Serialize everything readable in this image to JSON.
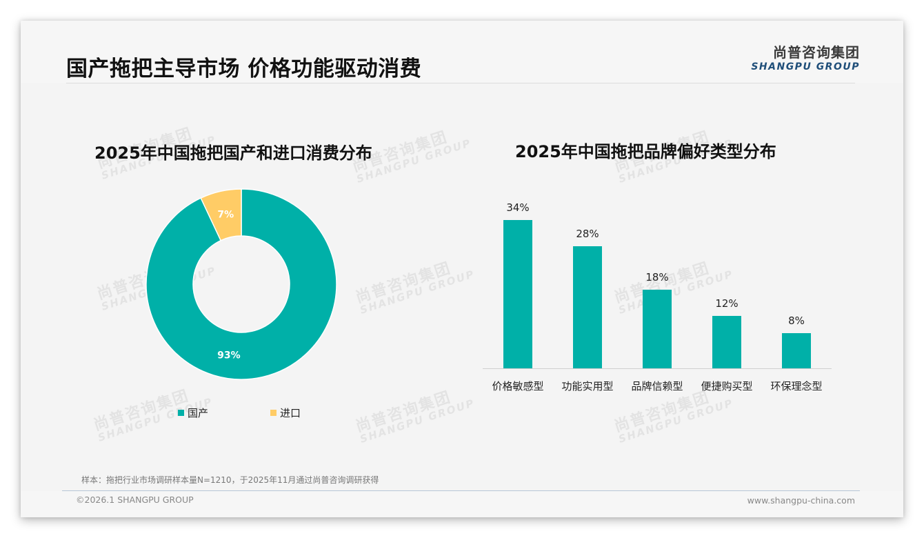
{
  "header": {
    "title": "国产拖把主导市场 价格功能驱动消费",
    "logo_cn": "尚普咨询集团",
    "logo_en": "SHANGPU GROUP"
  },
  "watermark": {
    "cn": "尚普咨询集团",
    "en": "SHANGPU GROUP"
  },
  "colors": {
    "teal": "#00b0a8",
    "yellow": "#ffcc66",
    "background": "#f4f4f4"
  },
  "chart_data": [
    {
      "type": "pie",
      "donut": true,
      "title": "2025年中国拖把国产和进口消费分布",
      "categories": [
        "国产",
        "进口"
      ],
      "values": [
        93,
        7
      ],
      "labels": [
        "93%",
        "7%"
      ],
      "colors": [
        "#00b0a8",
        "#ffcc66"
      ],
      "legend_position": "bottom"
    },
    {
      "type": "bar",
      "title": "2025年中国拖把品牌偏好类型分布",
      "categories": [
        "价格敏感型",
        "功能实用型",
        "品牌信赖型",
        "便捷购买型",
        "环保理念型"
      ],
      "values": [
        34,
        28,
        18,
        12,
        8
      ],
      "labels": [
        "34%",
        "28%",
        "18%",
        "12%",
        "8%"
      ],
      "xlabel": "",
      "ylabel": "",
      "ylim": [
        0,
        40
      ],
      "grid": false,
      "color": "#00b0a8"
    }
  ],
  "legend": {
    "domestic": "国产",
    "imported": "进口"
  },
  "footer": {
    "note": "样本：拖把行业市场调研样本量N=1210，于2025年11月通过尚普咨询调研获得",
    "copyright": "©2026.1 SHANGPU GROUP",
    "website": "www.shangpu-china.com"
  }
}
